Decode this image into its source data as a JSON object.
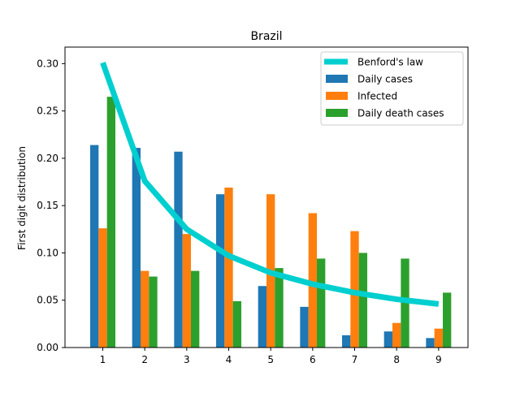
{
  "chart_data": {
    "type": "bar",
    "title": "Brazil",
    "xlabel": "",
    "ylabel": "First digit distribution",
    "categories": [
      "1",
      "2",
      "3",
      "4",
      "5",
      "6",
      "7",
      "8",
      "9"
    ],
    "x": [
      1,
      2,
      3,
      4,
      5,
      6,
      7,
      8,
      9
    ],
    "xlim": [
      0.1,
      9.7
    ],
    "ylim": [
      0,
      0.3175
    ],
    "yticks": [
      "0.00",
      "0.05",
      "0.10",
      "0.15",
      "0.20",
      "0.25",
      "0.30"
    ],
    "ytick_values": [
      0,
      0.05,
      0.1,
      0.15,
      0.2,
      0.25,
      0.3
    ],
    "grid": false,
    "legend_position": "top-right",
    "series": [
      {
        "name": "Daily cases",
        "kind": "bar",
        "color": "#1f77b4",
        "values": [
          0.214,
          0.211,
          0.207,
          0.162,
          0.065,
          0.043,
          0.013,
          0.017,
          0.01
        ]
      },
      {
        "name": "Infected",
        "kind": "bar",
        "color": "#ff7f0e",
        "values": [
          0.126,
          0.081,
          0.12,
          0.169,
          0.162,
          0.142,
          0.123,
          0.026,
          0.02
        ]
      },
      {
        "name": "Daily death cases",
        "kind": "bar",
        "color": "#2ca02c",
        "values": [
          0.265,
          0.075,
          0.081,
          0.049,
          0.084,
          0.094,
          0.1,
          0.094,
          0.058
        ]
      }
    ],
    "line": {
      "name": "Benford's law",
      "kind": "line",
      "color": "#00cfcf",
      "values": [
        0.301,
        0.176,
        0.125,
        0.097,
        0.079,
        0.067,
        0.058,
        0.051,
        0.046
      ]
    }
  }
}
